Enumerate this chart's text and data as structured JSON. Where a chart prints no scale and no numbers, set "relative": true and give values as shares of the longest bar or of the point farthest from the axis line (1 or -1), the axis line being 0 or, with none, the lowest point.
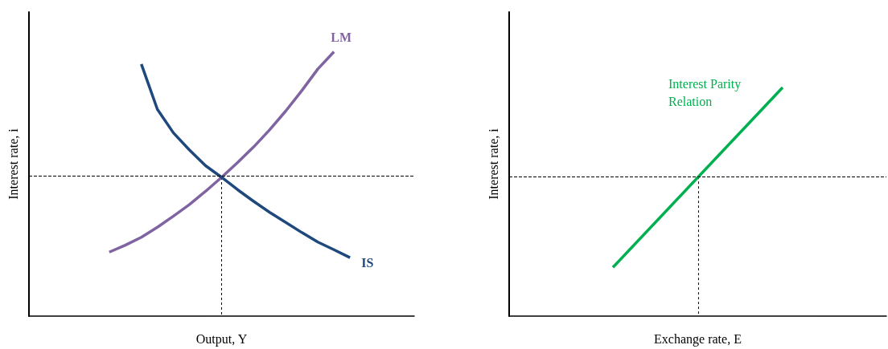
{
  "chart_data": [
    {
      "type": "line",
      "relative": true,
      "xlabel": "Output, Y",
      "ylabel": "Interest rate, i",
      "tick_labels": false,
      "grid": false,
      "legend": false,
      "marker": "none",
      "line_style": "solid",
      "categories": [
        null,
        null,
        null,
        null,
        null,
        null,
        null,
        null,
        null,
        null,
        null,
        null,
        null,
        null,
        null,
        null,
        null,
        null,
        null,
        null,
        null,
        null,
        null,
        null,
        null
      ],
      "series": [
        {
          "name": "LM",
          "color": "#8064a2",
          "values": [
            null,
            null,
            null,
            null,
            null,
            0.242,
            0.268,
            0.298,
            0.336,
            0.378,
            0.422,
            0.472,
            0.525,
            0.581,
            0.64,
            0.705,
            0.776,
            0.853,
            0.935,
            1,
            null,
            null,
            null,
            null,
            null
          ]
        },
        {
          "name": "IS",
          "color": "#1f497d",
          "values": [
            null,
            null,
            null,
            null,
            null,
            null,
            null,
            0.953,
            0.782,
            0.693,
            0.628,
            0.569,
            0.525,
            0.478,
            0.434,
            0.392,
            0.354,
            0.316,
            0.28,
            0.251,
            0.221,
            null,
            null,
            null,
            null
          ]
        }
      ],
      "ref_lines": [
        {
          "axis": "y",
          "value": 0.525
        }
      ]
    },
    {
      "type": "line",
      "relative": true,
      "xlabel": "Exchange rate, E",
      "ylabel": "Interest rate, i",
      "tick_labels": false,
      "grid": false,
      "legend": false,
      "marker": "none",
      "line_style": "solid",
      "categories": [
        null,
        null,
        null,
        null,
        null,
        null,
        null,
        null,
        null,
        null,
        null,
        null,
        null,
        null,
        null,
        null,
        null,
        null,
        null,
        null,
        null,
        null,
        null,
        null,
        null,
        null,
        null,
        null,
        null,
        null,
        null,
        null,
        null,
        null,
        null,
        null,
        null,
        null,
        null,
        null,
        null
      ],
      "series": [
        {
          "name": "Interest Parity Relation",
          "color": "#00b050",
          "values": [
            null,
            null,
            null,
            null,
            null,
            null,
            null,
            null,
            null,
            null,
            null,
            0.213,
            null,
            null,
            null,
            null,
            null,
            null,
            null,
            null,
            null,
            null,
            null,
            null,
            null,
            null,
            null,
            null,
            null,
            1,
            null,
            null,
            null,
            null,
            null,
            null,
            null,
            null,
            null,
            null,
            null
          ]
        }
      ],
      "ref_lines": [
        {
          "axis": "y",
          "value": 0.61
        }
      ]
    }
  ]
}
